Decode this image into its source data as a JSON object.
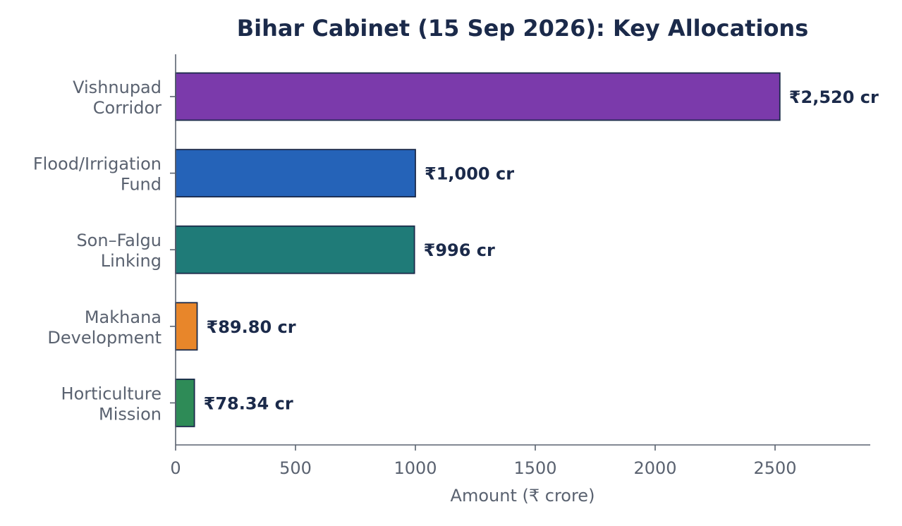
{
  "chart_data": {
    "type": "bar",
    "orientation": "horizontal",
    "title": "Bihar Cabinet (15 Sep 2026): Key Allocations",
    "xlabel": "Amount (₹ crore)",
    "ylabel": "",
    "xlim": [
      0,
      2900
    ],
    "xticks": [
      0,
      500,
      1000,
      1500,
      2000,
      2500
    ],
    "grid": false,
    "categories": [
      [
        "Vishnupad",
        "Corridor"
      ],
      [
        "Flood/Irrigation",
        "Fund"
      ],
      [
        "Son–Falgu",
        "Linking"
      ],
      [
        "Makhana",
        "Development"
      ],
      [
        "Horticulture",
        "Mission"
      ]
    ],
    "values": [
      2520,
      1000,
      996,
      89.8,
      78.34
    ],
    "data_labels": [
      "₹2,520 cr",
      "₹1,000 cr",
      "₹996 cr",
      "₹89.80 cr",
      "₹78.34 cr"
    ],
    "colors": [
      "#7b3aab",
      "#2563b8",
      "#1f7b78",
      "#e8862a",
      "#2e8b57"
    ]
  }
}
